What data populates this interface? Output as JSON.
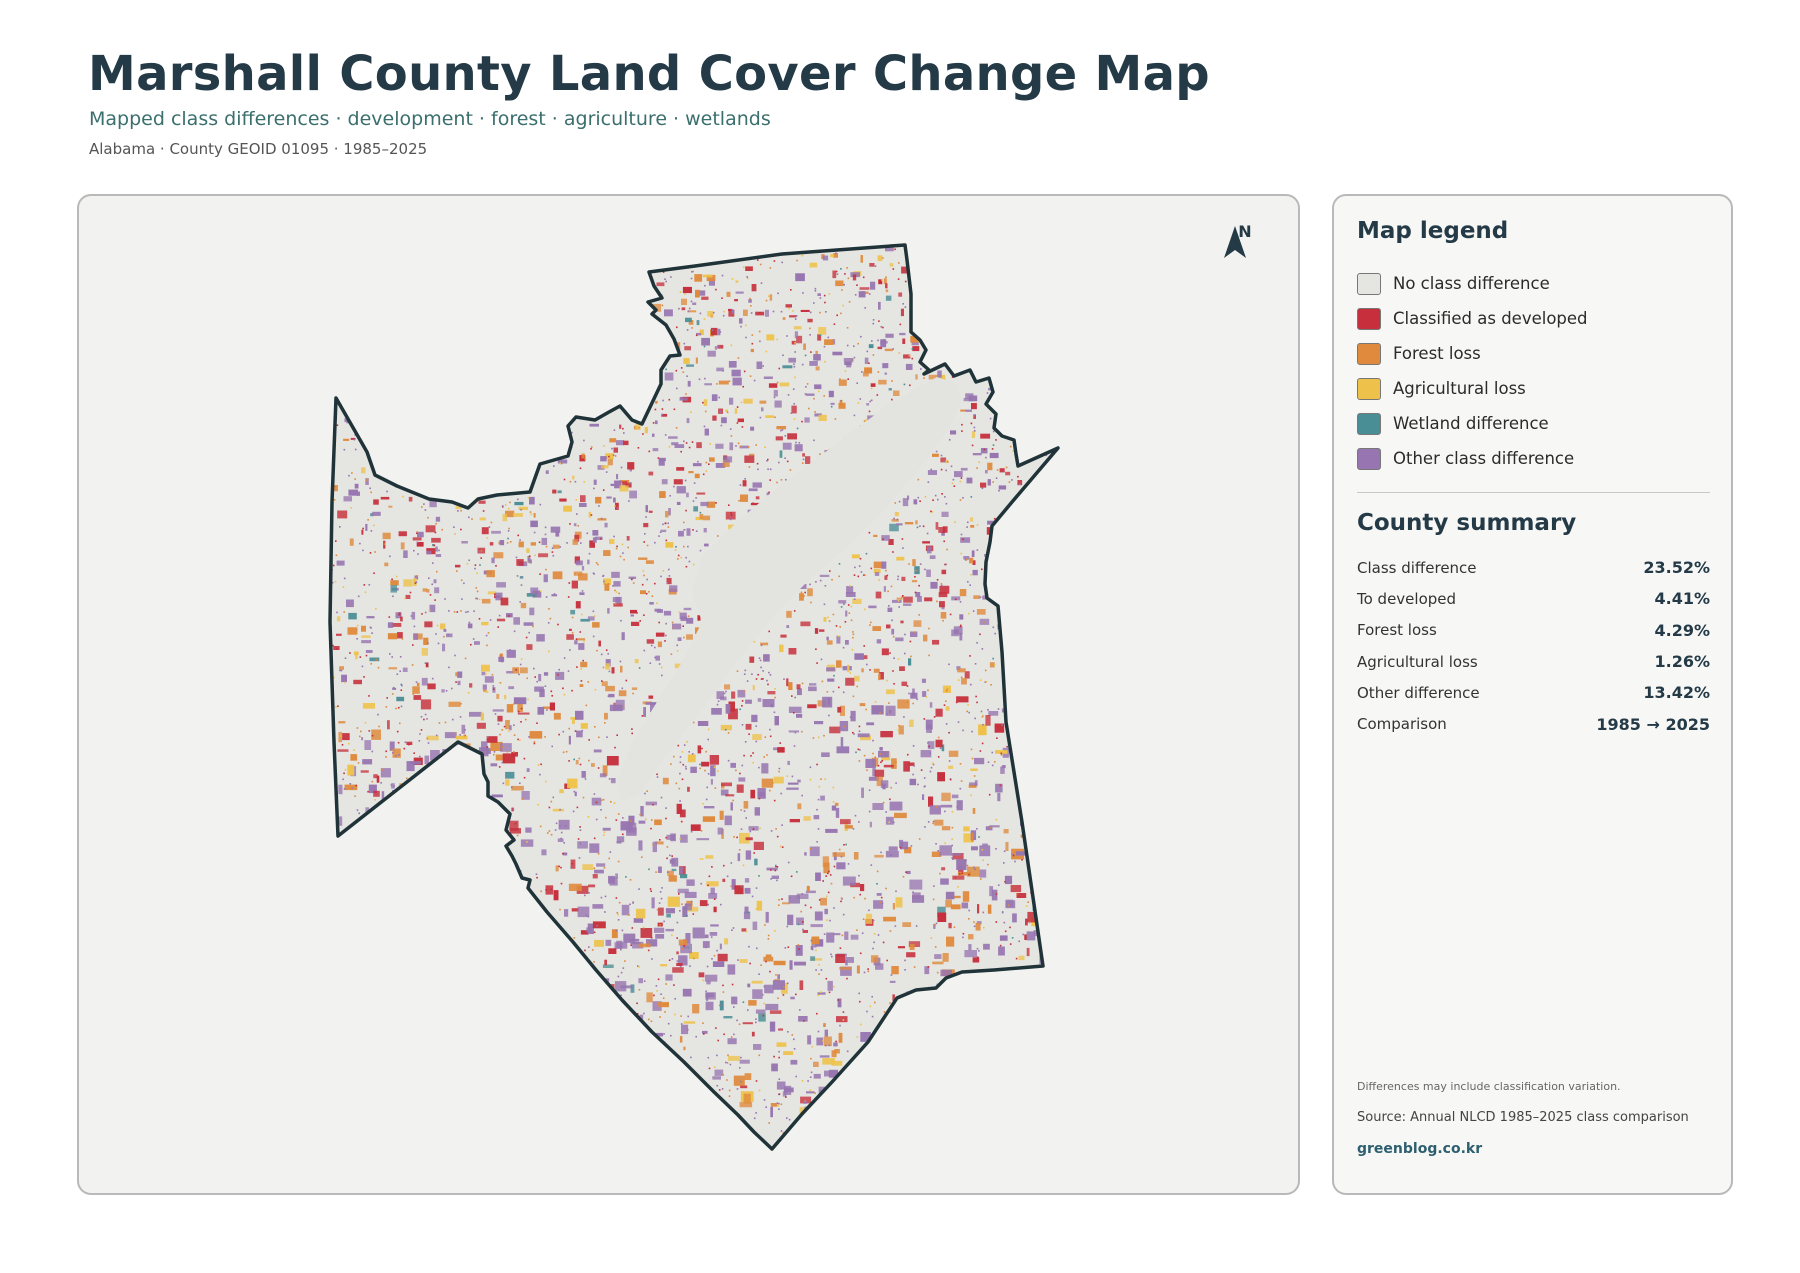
{
  "header": {
    "title": "Marshall County Land Cover Change Map",
    "subtitle": "Mapped class differences · development · forest · agriculture · wetlands",
    "meta": "Alabama · County GEOID 01095 · 1985–2025"
  },
  "map": {
    "north_label": "N",
    "icon": "north-arrow-icon",
    "colors": {
      "no_difference": "#e5e5e2",
      "developed": "#c62f3b",
      "forest_loss": "#df8a3c",
      "agricultural_loss": "#eec24a",
      "wetland": "#4a8e95",
      "other": "#9775b0",
      "boundary": "#1f3338"
    }
  },
  "legend": {
    "title": "Map legend",
    "items": [
      {
        "label": "No class difference",
        "color": "#e5e5e2"
      },
      {
        "label": "Classified as developed",
        "color": "#c62f3b"
      },
      {
        "label": "Forest loss",
        "color": "#df8a3c"
      },
      {
        "label": "Agricultural loss",
        "color": "#eec24a"
      },
      {
        "label": "Wetland difference",
        "color": "#4a8e95"
      },
      {
        "label": "Other class difference",
        "color": "#9775b0"
      }
    ]
  },
  "summary": {
    "title": "County summary",
    "rows": [
      {
        "label": "Class difference",
        "value": "23.52%"
      },
      {
        "label": "To developed",
        "value": "4.41%"
      },
      {
        "label": "Forest loss",
        "value": "4.29%"
      },
      {
        "label": "Agricultural loss",
        "value": "1.26%"
      },
      {
        "label": "Other difference",
        "value": "13.42%"
      },
      {
        "label": "Comparison",
        "value": "1985 → 2025"
      }
    ]
  },
  "footer": {
    "note": "Differences may include classification variation.",
    "source": "Source: Annual NLCD 1985–2025 class comparison",
    "brand": "greenblog.co.kr"
  }
}
